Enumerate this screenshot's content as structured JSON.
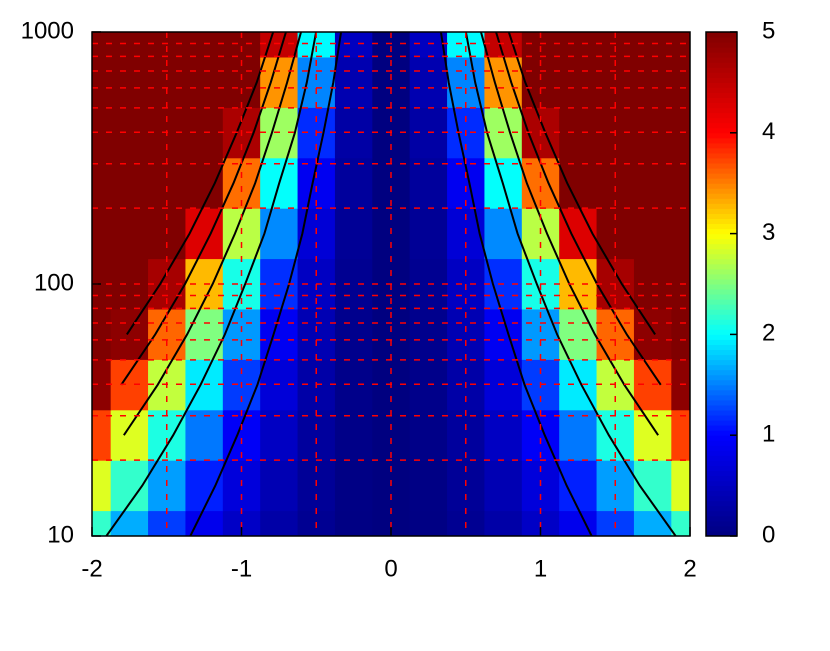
{
  "chart_data": {
    "type": "heatmap",
    "x": [
      -2,
      -1.75,
      -1.5,
      -1.25,
      -1,
      -0.75,
      -0.5,
      -0.25,
      0,
      0.25,
      0.5,
      0.75,
      1,
      1.25,
      1.5,
      1.75,
      2
    ],
    "y": [
      10,
      15.85,
      25.12,
      39.81,
      63.1,
      100,
      158.5,
      251.2,
      398.1,
      631,
      1000
    ],
    "z": [
      [
        2.2,
        1.68,
        1.24,
        0.86,
        0.55,
        0.31,
        0.14,
        0.03,
        0,
        0.03,
        0.14,
        0.31,
        0.55,
        0.86,
        1.24,
        1.68,
        2.2
      ],
      [
        2.87,
        2.2,
        1.62,
        1.12,
        0.72,
        0.4,
        0.18,
        0.04,
        0,
        0.04,
        0.18,
        0.4,
        0.72,
        1.12,
        1.62,
        2.2,
        2.87
      ],
      [
        3.75,
        2.87,
        2.11,
        1.47,
        0.94,
        0.53,
        0.23,
        0.06,
        0,
        0.06,
        0.23,
        0.53,
        0.94,
        1.47,
        2.11,
        2.87,
        3.75
      ],
      [
        4.9,
        3.75,
        2.76,
        1.92,
        1.23,
        0.69,
        0.31,
        0.08,
        0,
        0.08,
        0.31,
        0.69,
        1.23,
        1.92,
        2.76,
        3.75,
        4.9
      ],
      [
        6.4,
        4.9,
        3.6,
        2.5,
        1.6,
        0.9,
        0.4,
        0.1,
        0,
        0.1,
        0.4,
        0.9,
        1.6,
        2.5,
        3.6,
        4.9,
        6.4
      ],
      [
        8.36,
        6.4,
        4.7,
        3.27,
        2.09,
        1.18,
        0.52,
        0.13,
        0,
        0.13,
        0.52,
        1.18,
        2.09,
        3.27,
        4.7,
        6.4,
        8.36
      ],
      [
        10.92,
        8.36,
        6.14,
        4.27,
        2.73,
        1.54,
        0.68,
        0.17,
        0,
        0.17,
        0.68,
        1.54,
        2.73,
        4.27,
        6.14,
        8.36,
        10.92
      ],
      [
        14.27,
        10.92,
        8.03,
        5.57,
        3.57,
        2.01,
        0.89,
        0.22,
        0,
        0.22,
        0.89,
        2.01,
        3.57,
        5.57,
        8.03,
        10.92,
        14.27
      ],
      [
        18.64,
        14.27,
        10.49,
        7.28,
        4.66,
        2.62,
        1.17,
        0.29,
        0,
        0.29,
        1.17,
        2.62,
        4.66,
        7.28,
        10.49,
        14.27,
        18.64
      ],
      [
        24.35,
        18.64,
        13.7,
        9.51,
        6.09,
        3.42,
        1.52,
        0.38,
        0,
        0.38,
        1.52,
        3.42,
        6.09,
        9.51,
        13.7,
        18.64,
        24.35
      ],
      [
        31.8,
        24.35,
        17.89,
        12.42,
        7.95,
        4.47,
        1.99,
        0.5,
        0,
        0.5,
        1.99,
        4.47,
        7.95,
        12.42,
        17.89,
        24.35,
        31.8
      ]
    ],
    "contour_levels": [
      1,
      2,
      3,
      4,
      5
    ],
    "contour_color": "#000000",
    "xlim": [
      -2,
      2
    ],
    "xticks": [
      -2,
      -1,
      0,
      1,
      2
    ],
    "ylim": [
      10,
      1000
    ],
    "yticks": [
      10,
      100,
      1000
    ],
    "log_y": true,
    "cblim": [
      0,
      5
    ],
    "cbticks": [
      0,
      1,
      2,
      3,
      4,
      5
    ],
    "palette": [
      "#000080",
      "#0000ff",
      "#00ffff",
      "#ffff00",
      "#ff0000",
      "#800000"
    ],
    "grid": true,
    "grid_color": "#ff0000",
    "grid_x": [
      -1.5,
      -1,
      -0.5,
      0,
      0.5,
      1,
      1.5
    ],
    "grid_y": [
      20,
      30,
      40,
      50,
      60,
      70,
      80,
      90,
      100,
      200,
      300,
      400,
      500,
      600,
      700,
      800,
      900
    ]
  }
}
